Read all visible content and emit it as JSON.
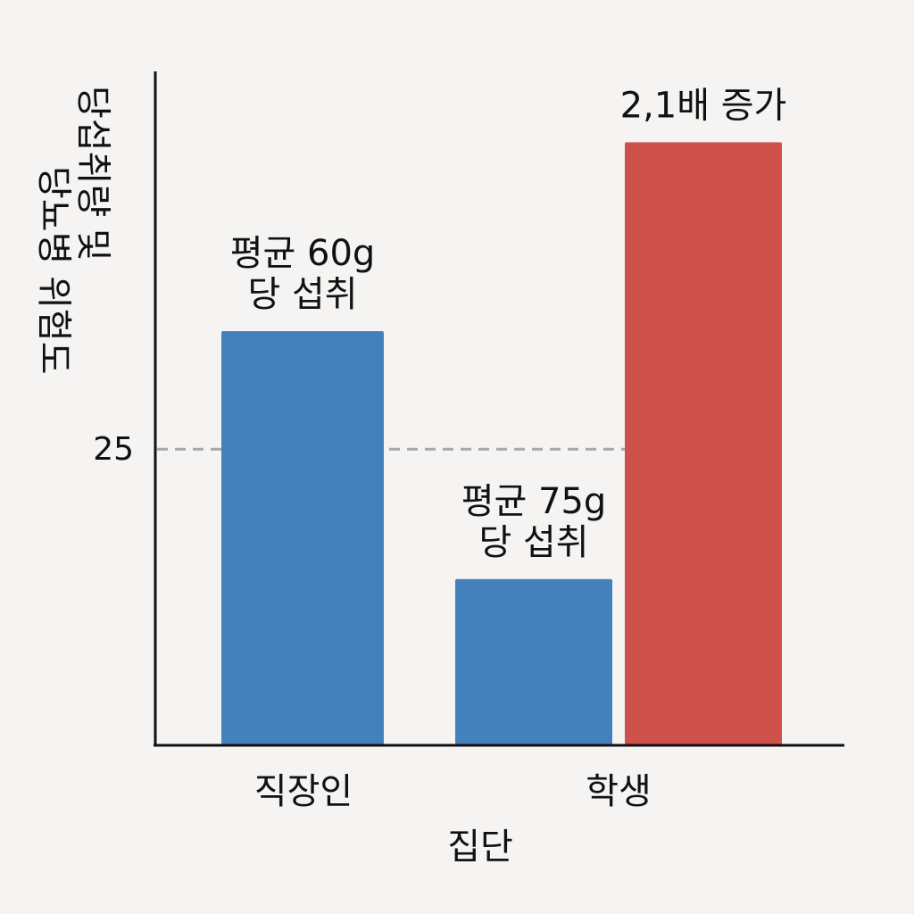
{
  "chart_data": {
    "type": "bar",
    "ylabel_lines": [
      "당섭취량 및",
      "당뇨병 위험도"
    ],
    "xlabel": "집단",
    "categories": [
      "직장인",
      "학생"
    ],
    "yticks": [
      25
    ],
    "reference_line": {
      "value": 25,
      "style": "dashed"
    },
    "ylim": [
      0,
      57
    ],
    "grid": false,
    "bars": [
      {
        "category": "직장인",
        "value": 35,
        "color": "#4481bc",
        "label": [
          "평균 60g",
          "당 섭취"
        ]
      },
      {
        "category": "학생",
        "value": 14,
        "color": "#4481bc",
        "label": [
          "평균 75g",
          "당 섭취"
        ]
      },
      {
        "category": "학생",
        "value": 51,
        "color": "#cd504b",
        "label": [
          "2,1배 증가"
        ]
      }
    ]
  }
}
